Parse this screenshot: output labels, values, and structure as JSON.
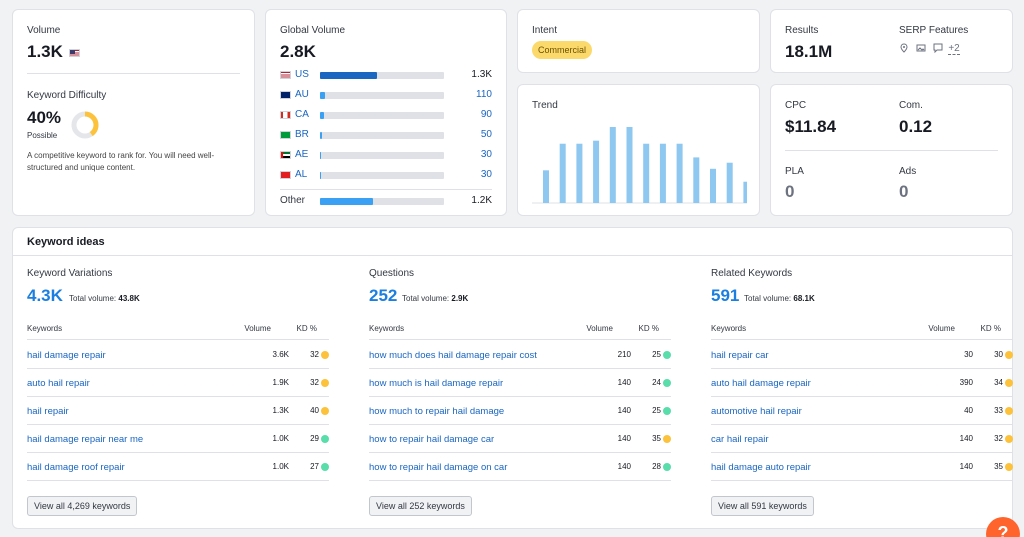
{
  "volume": {
    "label": "Volume",
    "value": "1.3K"
  },
  "difficulty": {
    "label": "Keyword Difficulty",
    "value": "40%",
    "status": "Possible",
    "percent": 40,
    "description": "A competitive keyword to rank for. You will need well-structured and unique content.",
    "ring_color": "#fdc23c"
  },
  "global_volume": {
    "label": "Global Volume",
    "value": "2.8K",
    "rows": [
      {
        "code": "US",
        "value": "1.3K",
        "fraction": 0.46
      },
      {
        "code": "AU",
        "value": "110",
        "fraction": 0.04
      },
      {
        "code": "CA",
        "value": "90",
        "fraction": 0.032
      },
      {
        "code": "BR",
        "value": "50",
        "fraction": 0.02
      },
      {
        "code": "AE",
        "value": "30",
        "fraction": 0.012
      },
      {
        "code": "AL",
        "value": "30",
        "fraction": 0.012
      }
    ],
    "other": {
      "label": "Other",
      "value": "1.2K",
      "fraction": 0.43
    }
  },
  "intent": {
    "label": "Intent",
    "badge": "Commercial"
  },
  "trend": {
    "label": "Trend",
    "values": [
      0.43,
      0.78,
      0.78,
      0.82,
      1.0,
      1.0,
      0.78,
      0.78,
      0.78,
      0.6,
      0.45,
      0.53,
      0.28
    ]
  },
  "results": {
    "label": "Results",
    "value": "18.1M"
  },
  "serp": {
    "label": "SERP Features",
    "more": "+2"
  },
  "cpc": {
    "label": "CPC",
    "value": "$11.84"
  },
  "com": {
    "label": "Com.",
    "value": "0.12"
  },
  "pla": {
    "label": "PLA",
    "value": "0"
  },
  "ads": {
    "label": "Ads",
    "value": "0"
  },
  "ideas": {
    "title": "Keyword ideas",
    "headers": {
      "keywords": "Keywords",
      "volume": "Volume",
      "kd": "KD %"
    },
    "columns": [
      {
        "title": "Keyword Variations",
        "count": "4.3K",
        "total_label": "Total volume:",
        "total": "43.8K",
        "rows": [
          {
            "keyword": "hail damage repair",
            "volume": "3.6K",
            "kd": "32",
            "color": "#fdc23c"
          },
          {
            "keyword": "auto hail repair",
            "volume": "1.9K",
            "kd": "32",
            "color": "#fdc23c"
          },
          {
            "keyword": "hail repair",
            "volume": "1.3K",
            "kd": "40",
            "color": "#fdc23c"
          },
          {
            "keyword": "hail damage repair near me",
            "volume": "1.0K",
            "kd": "29",
            "color": "#59ddaa"
          },
          {
            "keyword": "hail damage roof repair",
            "volume": "1.0K",
            "kd": "27",
            "color": "#59ddaa"
          }
        ],
        "button": "View all 4,269 keywords"
      },
      {
        "title": "Questions",
        "count": "252",
        "total_label": "Total volume:",
        "total": "2.9K",
        "rows": [
          {
            "keyword": "how much does hail damage repair cost",
            "volume": "210",
            "kd": "25",
            "color": "#59ddaa"
          },
          {
            "keyword": "how much is hail damage repair",
            "volume": "140",
            "kd": "24",
            "color": "#59ddaa"
          },
          {
            "keyword": "how much to repair hail damage",
            "volume": "140",
            "kd": "25",
            "color": "#59ddaa"
          },
          {
            "keyword": "how to repair hail damage car",
            "volume": "140",
            "kd": "35",
            "color": "#fdc23c"
          },
          {
            "keyword": "how to repair hail damage on car",
            "volume": "140",
            "kd": "28",
            "color": "#59ddaa"
          }
        ],
        "button": "View all 252 keywords"
      },
      {
        "title": "Related Keywords",
        "count": "591",
        "total_label": "Total volume:",
        "total": "68.1K",
        "rows": [
          {
            "keyword": "hail repair car",
            "volume": "30",
            "kd": "30",
            "color": "#fdc23c"
          },
          {
            "keyword": "auto hail damage repair",
            "volume": "390",
            "kd": "34",
            "color": "#fdc23c"
          },
          {
            "keyword": "automotive hail repair",
            "volume": "40",
            "kd": "33",
            "color": "#fdc23c"
          },
          {
            "keyword": "car hail repair",
            "volume": "140",
            "kd": "32",
            "color": "#fdc23c"
          },
          {
            "keyword": "hail damage auto repair",
            "volume": "140",
            "kd": "35",
            "color": "#fdc23c"
          }
        ],
        "button": "View all 591 keywords"
      }
    ]
  },
  "help_button": "?"
}
